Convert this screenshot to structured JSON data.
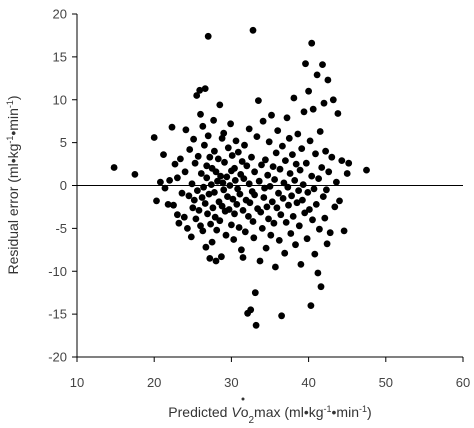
{
  "chart_data": {
    "type": "scatter",
    "title": "",
    "xlabel": {
      "pre": "Predicted ",
      "v": "V",
      "o": "o",
      "sub": "2",
      "post": "max (ml•kg",
      "sup1": "-1",
      "mid": "•min",
      "sup2": "-1",
      "end": ")"
    },
    "ylabel": {
      "pre": "Residual error (ml•kg",
      "sup1": "-1",
      "mid": "•min",
      "sup2": "-1",
      "end": ")"
    },
    "xlim": [
      10,
      60
    ],
    "ylim": [
      -20,
      20
    ],
    "xticks": [
      "10",
      "20",
      "30",
      "40",
      "50",
      "60"
    ],
    "yticks": [
      "20",
      "15",
      "10",
      "5",
      "0",
      "-5",
      "-10",
      "-15",
      "-20"
    ],
    "grid": false,
    "legend": "none",
    "reference_line_y": 0,
    "points": [
      [
        14.8,
        2.1
      ],
      [
        17.5,
        1.3
      ],
      [
        20.0,
        5.6
      ],
      [
        20.3,
        -1.8
      ],
      [
        20.8,
        0.4
      ],
      [
        21.2,
        3.6
      ],
      [
        21.4,
        -0.3
      ],
      [
        21.8,
        -2.2
      ],
      [
        22.0,
        0.6
      ],
      [
        22.3,
        6.8
      ],
      [
        22.5,
        -2.3
      ],
      [
        22.7,
        2.5
      ],
      [
        23.0,
        -3.4
      ],
      [
        23.0,
        0.9
      ],
      [
        23.2,
        -4.4
      ],
      [
        23.4,
        3.1
      ],
      [
        23.6,
        -0.9
      ],
      [
        23.9,
        -3.7
      ],
      [
        24.0,
        1.6
      ],
      [
        24.1,
        6.5
      ],
      [
        24.3,
        -5.0
      ],
      [
        24.5,
        -1.2
      ],
      [
        24.6,
        4.2
      ],
      [
        24.8,
        -6.0
      ],
      [
        24.9,
        0.2
      ],
      [
        25.0,
        -2.6
      ],
      [
        25.1,
        5.4
      ],
      [
        25.2,
        -1.7
      ],
      [
        25.3,
        2.6
      ],
      [
        25.4,
        -3.9
      ],
      [
        25.5,
        10.5
      ],
      [
        25.6,
        -0.6
      ],
      [
        25.7,
        3.4
      ],
      [
        25.8,
        -2.9
      ],
      [
        25.9,
        11.1
      ],
      [
        26.0,
        -4.7
      ],
      [
        26.0,
        8.3
      ],
      [
        26.1,
        1.4
      ],
      [
        26.2,
        -1.4
      ],
      [
        26.3,
        6.9
      ],
      [
        26.3,
        -5.3
      ],
      [
        26.4,
        -0.2
      ],
      [
        26.5,
        4.7
      ],
      [
        26.6,
        -2.1
      ],
      [
        26.6,
        11.3
      ],
      [
        26.7,
        -7.2
      ],
      [
        26.8,
        0.9
      ],
      [
        26.8,
        2.3
      ],
      [
        26.9,
        -3.3
      ],
      [
        27.0,
        5.8
      ],
      [
        27.0,
        17.4
      ],
      [
        27.1,
        -1.0
      ],
      [
        27.2,
        -8.5
      ],
      [
        27.2,
        3.3
      ],
      [
        27.3,
        -4.5
      ],
      [
        27.4,
        0.1
      ],
      [
        27.5,
        2.0
      ],
      [
        27.5,
        -6.6
      ],
      [
        27.6,
        -2.6
      ],
      [
        27.7,
        7.6
      ],
      [
        27.8,
        -0.8
      ],
      [
        27.8,
        4.0
      ],
      [
        27.9,
        -3.7
      ],
      [
        28.0,
        1.6
      ],
      [
        28.0,
        -8.8
      ],
      [
        28.1,
        -5.2
      ],
      [
        28.2,
        0.5
      ],
      [
        28.3,
        3.1
      ],
      [
        28.4,
        -1.9
      ],
      [
        28.5,
        9.4
      ],
      [
        28.5,
        -4.1
      ],
      [
        28.6,
        1.1
      ],
      [
        28.7,
        -8.3
      ],
      [
        28.8,
        5.5
      ],
      [
        28.8,
        -2.4
      ],
      [
        28.9,
        0.3
      ],
      [
        29.0,
        -0.5
      ],
      [
        29.0,
        6.1
      ],
      [
        29.1,
        2.7
      ],
      [
        29.2,
        -3.0
      ],
      [
        29.3,
        -5.8
      ],
      [
        29.4,
        1.0
      ],
      [
        29.5,
        -1.3
      ],
      [
        29.6,
        4.4
      ],
      [
        29.7,
        -2.8
      ],
      [
        29.8,
        0.0
      ],
      [
        29.9,
        7.2
      ],
      [
        30.0,
        -4.6
      ],
      [
        30.0,
        1.7
      ],
      [
        30.1,
        3.5
      ],
      [
        30.2,
        -1.6
      ],
      [
        30.3,
        -6.3
      ],
      [
        30.4,
        2.0
      ],
      [
        30.4,
        -3.3
      ],
      [
        30.5,
        0.6
      ],
      [
        30.6,
        5.2
      ],
      [
        30.7,
        -2.2
      ],
      [
        30.8,
        -0.4
      ],
      [
        30.9,
        3.9
      ],
      [
        31.0,
        -4.9
      ],
      [
        31.1,
        -1.0
      ],
      [
        31.2,
        1.3
      ],
      [
        31.3,
        -7.5
      ],
      [
        31.4,
        2.8
      ],
      [
        31.5,
        -8.4
      ],
      [
        31.5,
        -2.9
      ],
      [
        31.6,
        0.8
      ],
      [
        31.7,
        4.7
      ],
      [
        31.8,
        -5.4
      ],
      [
        31.9,
        -1.7
      ],
      [
        32.0,
        2.3
      ],
      [
        32.1,
        -14.9
      ],
      [
        32.2,
        -3.6
      ],
      [
        32.3,
        0.2
      ],
      [
        32.3,
        6.6
      ],
      [
        32.4,
        -2.0
      ],
      [
        32.5,
        -14.5
      ],
      [
        32.6,
        3.3
      ],
      [
        32.7,
        -0.7
      ],
      [
        32.8,
        18.1
      ],
      [
        32.8,
        -4.2
      ],
      [
        32.9,
        -6.1
      ],
      [
        33.0,
        -1.1
      ],
      [
        33.0,
        1.6
      ],
      [
        33.1,
        -12.5
      ],
      [
        33.2,
        -16.3
      ],
      [
        33.3,
        5.7
      ],
      [
        33.4,
        -2.7
      ],
      [
        33.5,
        9.9
      ],
      [
        33.6,
        0.5
      ],
      [
        33.7,
        -8.8
      ],
      [
        33.8,
        -3.1
      ],
      [
        33.9,
        2.4
      ],
      [
        34.0,
        -5.0
      ],
      [
        34.1,
        7.5
      ],
      [
        34.2,
        -1.4
      ],
      [
        34.3,
        -0.3
      ],
      [
        34.4,
        3.0
      ],
      [
        34.5,
        -7.3
      ],
      [
        34.6,
        -2.5
      ],
      [
        34.7,
        1.2
      ],
      [
        34.8,
        -3.9
      ],
      [
        34.9,
        5.1
      ],
      [
        35.0,
        -0.1
      ],
      [
        35.1,
        -5.8
      ],
      [
        35.2,
        8.2
      ],
      [
        35.3,
        -1.9
      ],
      [
        35.4,
        2.2
      ],
      [
        35.5,
        -4.4
      ],
      [
        35.6,
        0.7
      ],
      [
        35.7,
        -9.5
      ],
      [
        35.8,
        3.8
      ],
      [
        35.9,
        -2.6
      ],
      [
        36.0,
        6.4
      ],
      [
        36.1,
        -0.9
      ],
      [
        36.2,
        -6.4
      ],
      [
        36.3,
        1.9
      ],
      [
        36.4,
        -3.4
      ],
      [
        36.5,
        -15.2
      ],
      [
        36.6,
        4.6
      ],
      [
        36.7,
        -1.5
      ],
      [
        36.8,
        0.3
      ],
      [
        36.9,
        -7.9
      ],
      [
        37.0,
        2.9
      ],
      [
        37.1,
        -4.3
      ],
      [
        37.2,
        7.9
      ],
      [
        37.3,
        -0.2
      ],
      [
        37.4,
        -2.3
      ],
      [
        37.5,
        5.5
      ],
      [
        37.6,
        1.4
      ],
      [
        37.7,
        -5.6
      ],
      [
        37.8,
        -1.2
      ],
      [
        37.9,
        3.6
      ],
      [
        38.0,
        -3.6
      ],
      [
        38.1,
        10.2
      ],
      [
        38.2,
        0.6
      ],
      [
        38.3,
        -6.9
      ],
      [
        38.4,
        2.5
      ],
      [
        38.5,
        -2.0
      ],
      [
        38.6,
        6.0
      ],
      [
        38.7,
        -0.6
      ],
      [
        38.8,
        -4.7
      ],
      [
        38.9,
        1.8
      ],
      [
        39.0,
        -9.2
      ],
      [
        39.1,
        4.3
      ],
      [
        39.2,
        -1.7
      ],
      [
        39.3,
        0.1
      ],
      [
        39.4,
        8.6
      ],
      [
        39.5,
        -3.2
      ],
      [
        39.6,
        14.2
      ],
      [
        39.7,
        2.6
      ],
      [
        39.8,
        -6.2
      ],
      [
        39.9,
        -0.8
      ],
      [
        40.0,
        11.0
      ],
      [
        40.1,
        -2.8
      ],
      [
        40.2,
        5.2
      ],
      [
        40.3,
        -14.0
      ],
      [
        40.4,
        16.6
      ],
      [
        40.4,
        1.1
      ],
      [
        40.5,
        -4.0
      ],
      [
        40.6,
        8.9
      ],
      [
        40.7,
        -0.4
      ],
      [
        40.8,
        -8.0
      ],
      [
        40.9,
        3.7
      ],
      [
        41.0,
        -2.2
      ],
      [
        41.1,
        12.9
      ],
      [
        41.2,
        -10.2
      ],
      [
        41.3,
        0.8
      ],
      [
        41.4,
        -5.1
      ],
      [
        41.5,
        6.3
      ],
      [
        41.6,
        -11.8
      ],
      [
        41.7,
        2.1
      ],
      [
        41.8,
        14.1
      ],
      [
        41.9,
        -1.3
      ],
      [
        42.0,
        9.6
      ],
      [
        42.1,
        -3.8
      ],
      [
        42.2,
        4.0
      ],
      [
        42.3,
        -0.5
      ],
      [
        42.4,
        -6.8
      ],
      [
        42.5,
        12.3
      ],
      [
        42.6,
        1.6
      ],
      [
        42.8,
        -5.5
      ],
      [
        43.0,
        3.3
      ],
      [
        43.2,
        10.0
      ],
      [
        43.4,
        -2.5
      ],
      [
        43.6,
        0.4
      ],
      [
        43.8,
        8.4
      ],
      [
        44.0,
        -1.8
      ],
      [
        44.3,
        2.9
      ],
      [
        44.6,
        -5.3
      ],
      [
        45.0,
        1.4
      ],
      [
        45.2,
        2.6
      ],
      [
        47.5,
        1.8
      ]
    ]
  }
}
